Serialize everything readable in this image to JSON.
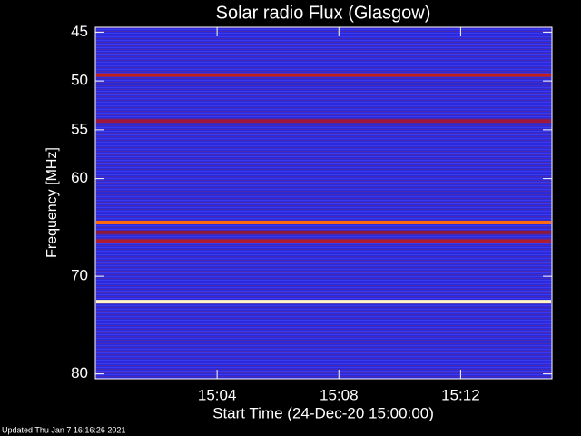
{
  "chart_data": {
    "type": "spectrogram",
    "title": "Solar radio Flux (Glasgow)",
    "x_label": "Start Time (24-Dec-20 15:00:00)",
    "y_label": "Frequency [MHz]",
    "footer": "Updated Thu Jan  7 16:16:26 2021",
    "xlim": [
      "15:00",
      "15:15"
    ],
    "xticks": [
      "15:04",
      "15:08",
      "15:12"
    ],
    "ylim": [
      44.5,
      80.5
    ],
    "yticks": [
      45,
      50,
      55,
      60,
      70,
      80
    ],
    "y_inverted": true,
    "bands": [
      {
        "freq": 49.4,
        "color": "#c0201a"
      },
      {
        "freq": 54.1,
        "color": "#a0183a"
      },
      {
        "freq": 64.5,
        "color": "#ff6a10"
      },
      {
        "freq": 65.5,
        "color": "#901838"
      },
      {
        "freq": 66.4,
        "color": "#b01c30"
      },
      {
        "freq": 72.6,
        "color": "#fff6c8"
      }
    ]
  }
}
